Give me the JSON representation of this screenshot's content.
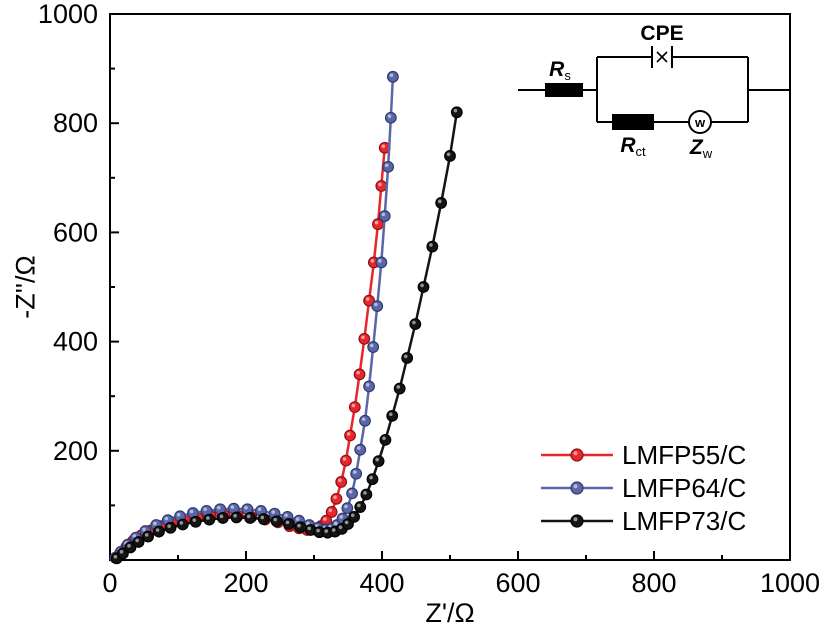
{
  "figure": {
    "background": "#ffffff"
  },
  "chart_data": {
    "type": "line",
    "markers": true,
    "title": "",
    "xlabel": "Z'/Ω",
    "ylabel": "-Z''/Ω",
    "xlim": [
      0,
      1000
    ],
    "ylim": [
      0,
      1000
    ],
    "x_ticks": [
      0,
      200,
      400,
      600,
      800,
      1000
    ],
    "y_ticks": [
      200,
      400,
      600,
      800,
      1000
    ],
    "minor_tick_step": 100,
    "grid": false,
    "legend_position": "lower-right",
    "series": [
      {
        "name": "LMFP55/C",
        "color": "#e8262b",
        "edge_color": "#8f1016",
        "points": [
          [
            8,
            4
          ],
          [
            15,
            13
          ],
          [
            24,
            24
          ],
          [
            34,
            35
          ],
          [
            46,
            45
          ],
          [
            60,
            54
          ],
          [
            75,
            62
          ],
          [
            92,
            69
          ],
          [
            110,
            74
          ],
          [
            129,
            78
          ],
          [
            148,
            81
          ],
          [
            168,
            82
          ],
          [
            188,
            81
          ],
          [
            208,
            79
          ],
          [
            228,
            74
          ],
          [
            247,
            69
          ],
          [
            264,
            62
          ],
          [
            278,
            58
          ],
          [
            290,
            55
          ],
          [
            300,
            56
          ],
          [
            310,
            62
          ],
          [
            318,
            72
          ],
          [
            326,
            88
          ],
          [
            333,
            112
          ],
          [
            340,
            143
          ],
          [
            347,
            182
          ],
          [
            353,
            228
          ],
          [
            360,
            280
          ],
          [
            367,
            340
          ],
          [
            374,
            405
          ],
          [
            381,
            475
          ],
          [
            388,
            545
          ],
          [
            394,
            615
          ],
          [
            399,
            685
          ],
          [
            404,
            755
          ]
        ]
      },
      {
        "name": "LMFP64/C",
        "color": "#5a66a8",
        "edge_color": "#2e3a6e",
        "points": [
          [
            8,
            4
          ],
          [
            16,
            15
          ],
          [
            26,
            28
          ],
          [
            38,
            41
          ],
          [
            52,
            53
          ],
          [
            68,
            64
          ],
          [
            85,
            73
          ],
          [
            103,
            80
          ],
          [
            122,
            86
          ],
          [
            142,
            90
          ],
          [
            162,
            93
          ],
          [
            182,
            94
          ],
          [
            202,
            93
          ],
          [
            222,
            90
          ],
          [
            242,
            85
          ],
          [
            261,
            79
          ],
          [
            278,
            72
          ],
          [
            293,
            64
          ],
          [
            306,
            59
          ],
          [
            317,
            56
          ],
          [
            326,
            58
          ],
          [
            334,
            64
          ],
          [
            342,
            76
          ],
          [
            349,
            95
          ],
          [
            356,
            122
          ],
          [
            362,
            158
          ],
          [
            368,
            202
          ],
          [
            375,
            255
          ],
          [
            381,
            318
          ],
          [
            387,
            390
          ],
          [
            393,
            465
          ],
          [
            399,
            545
          ],
          [
            404,
            630
          ],
          [
            409,
            720
          ],
          [
            413,
            810
          ],
          [
            416,
            885
          ]
        ]
      },
      {
        "name": "LMFP73/C",
        "color": "#141414",
        "edge_color": "#000000",
        "points": [
          [
            10,
            3
          ],
          [
            19,
            12
          ],
          [
            30,
            23
          ],
          [
            42,
            33
          ],
          [
            56,
            43
          ],
          [
            72,
            52
          ],
          [
            89,
            59
          ],
          [
            107,
            65
          ],
          [
            126,
            70
          ],
          [
            146,
            74
          ],
          [
            166,
            77
          ],
          [
            186,
            78
          ],
          [
            206,
            77
          ],
          [
            226,
            75
          ],
          [
            245,
            71
          ],
          [
            263,
            66
          ],
          [
            280,
            60
          ],
          [
            295,
            55
          ],
          [
            308,
            51
          ],
          [
            320,
            50
          ],
          [
            331,
            52
          ],
          [
            341,
            57
          ],
          [
            350,
            66
          ],
          [
            359,
            79
          ],
          [
            368,
            97
          ],
          [
            377,
            120
          ],
          [
            386,
            148
          ],
          [
            395,
            181
          ],
          [
            405,
            220
          ],
          [
            415,
            264
          ],
          [
            426,
            314
          ],
          [
            437,
            370
          ],
          [
            449,
            432
          ],
          [
            461,
            500
          ],
          [
            474,
            574
          ],
          [
            487,
            654
          ],
          [
            500,
            740
          ],
          [
            510,
            820
          ]
        ]
      }
    ],
    "inset_circuit": {
      "cpe_label": "CPE",
      "rs_label": {
        "main": "R",
        "sub": "s"
      },
      "rct_label": {
        "main": "R",
        "sub": "ct"
      },
      "zw_label": {
        "main": "Z",
        "sub": "w"
      },
      "warburg_symbol": "w"
    }
  }
}
